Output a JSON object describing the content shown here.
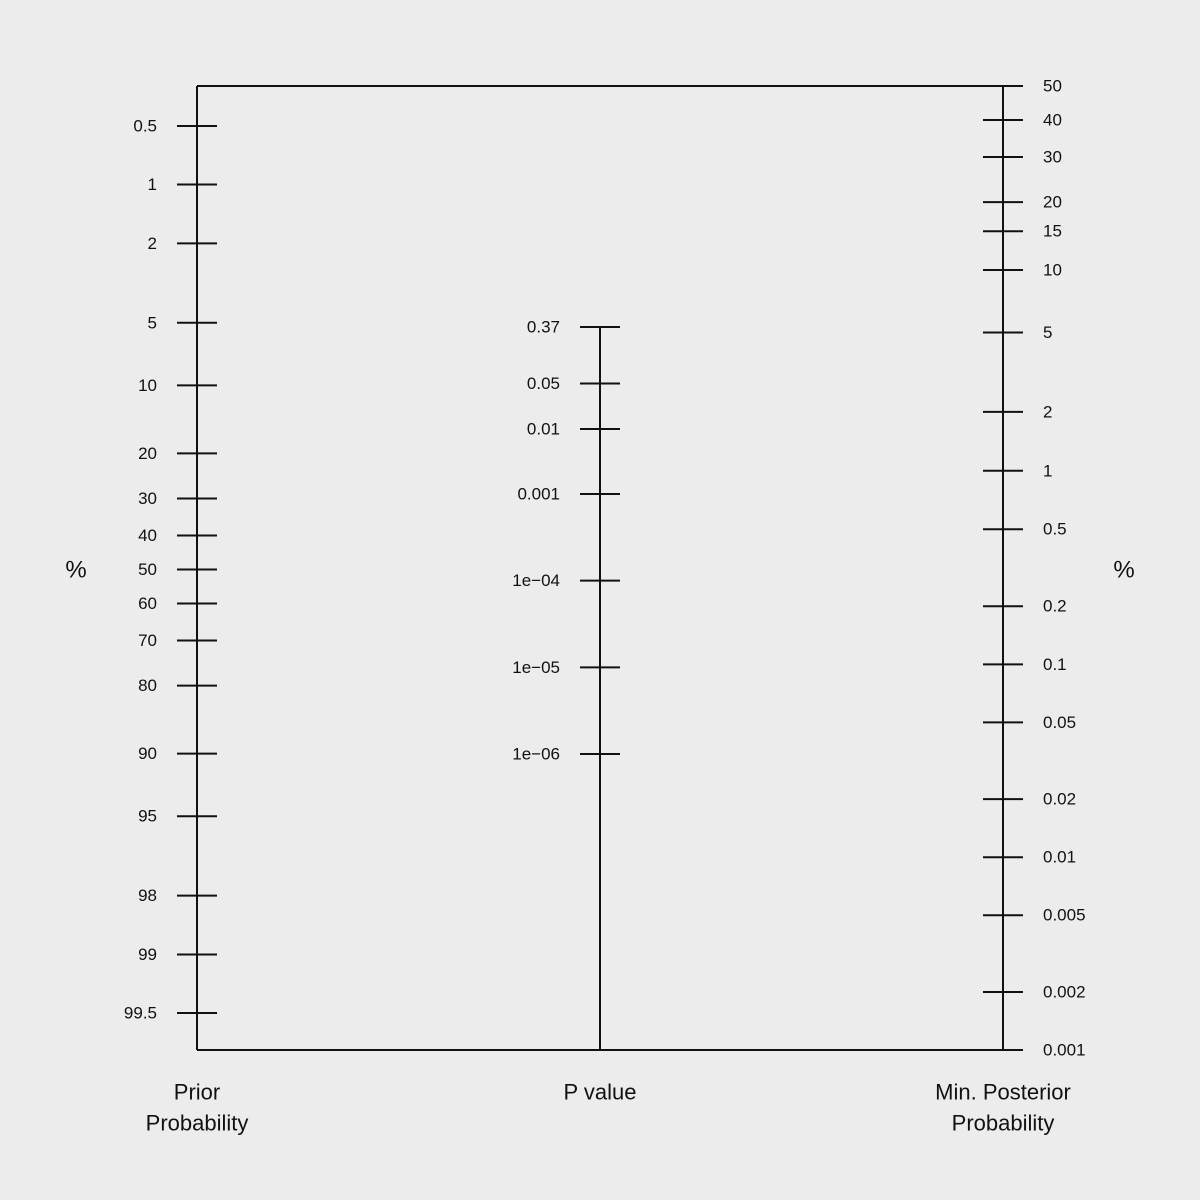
{
  "chart_data": {
    "type": "nomogram",
    "axes": [
      {
        "id": "prior",
        "title_lines": [
          "Prior",
          "Probability"
        ],
        "unit": "%",
        "scale": "logit",
        "ticks": [
          "0.5",
          "1",
          "2",
          "5",
          "10",
          "20",
          "30",
          "40",
          "50",
          "60",
          "70",
          "80",
          "90",
          "95",
          "98",
          "99",
          "99.5"
        ]
      },
      {
        "id": "pvalue",
        "title_lines": [
          "P value"
        ],
        "unit": "",
        "scale": "log",
        "ticks": [
          "0.37",
          "0.05",
          "0.01",
          "0.001",
          "1e−04",
          "1e−05",
          "1e−06"
        ]
      },
      {
        "id": "posterior",
        "title_lines": [
          "Min. Posterior",
          "Probability"
        ],
        "unit": "%",
        "scale": "logit",
        "ticks": [
          "50",
          "40",
          "30",
          "20",
          "15",
          "10",
          "5",
          "2",
          "1",
          "0.5",
          "0.2",
          "0.1",
          "0.05",
          "0.02",
          "0.01",
          "0.005",
          "0.002",
          "0.001"
        ]
      }
    ],
    "prior_range": [
      "0.5",
      "99.5"
    ],
    "pvalue_range": [
      "0.37",
      "1e−06"
    ],
    "posterior_range": [
      "50",
      "0.001"
    ]
  }
}
